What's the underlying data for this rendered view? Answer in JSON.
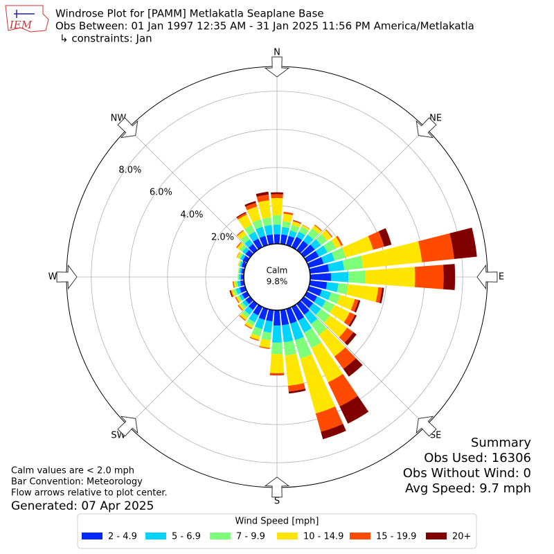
{
  "chart_data": {
    "type": "windrose",
    "logo_text": "IEM",
    "title": "Windrose Plot for [PAMM] Metlakatla Seaplane Base",
    "subtitle": "Obs Between: 01 Jan 1997 12:35 AM - 31 Jan 2025 11:56 PM America/Metlakatla",
    "constraints": "↳ constraints: Jan",
    "compass_labels": [
      "N",
      "NE",
      "E",
      "SE",
      "S",
      "SW",
      "W",
      "NW"
    ],
    "calm_label": "Calm",
    "calm_value": "9.8%",
    "rlim": [
      0,
      9.3
    ],
    "rticks": [
      {
        "value": 0,
        "label": "0.0%"
      },
      {
        "value": 2,
        "label": "2.0%"
      },
      {
        "value": 4,
        "label": "4.0%"
      },
      {
        "value": 6,
        "label": "6.0%"
      },
      {
        "value": 8,
        "label": "8.0%"
      }
    ],
    "grid": true,
    "legend_title": "Wind Speed [mph]",
    "series": [
      {
        "name": "2 - 4.9",
        "color": "#0028ff",
        "values": [
          0.5,
          0.5,
          0.5,
          0.6,
          0.6,
          0.7,
          0.7,
          0.8,
          1.0,
          1.1,
          0.9,
          0.7,
          0.6,
          0.6,
          0.7,
          0.8,
          0.8,
          0.8,
          0.8,
          0.6,
          0.6,
          0.5,
          0.4,
          0.3,
          0.3,
          0.3,
          0.2,
          0.15,
          0.15,
          0.2,
          0.25,
          0.3,
          0.4,
          0.5,
          0.5,
          0.5
        ]
      },
      {
        "name": "5 - 6.9",
        "color": "#00d4ff",
        "values": [
          0.5,
          0.4,
          0.3,
          0.3,
          0.4,
          0.4,
          0.5,
          0.6,
          0.8,
          0.9,
          0.6,
          0.5,
          0.5,
          0.5,
          0.6,
          0.7,
          0.9,
          0.9,
          0.9,
          0.6,
          0.5,
          0.4,
          0.3,
          0.2,
          0.15,
          0.2,
          0.15,
          0.1,
          0.1,
          0.1,
          0.15,
          0.2,
          0.3,
          0.4,
          0.5,
          0.5
        ]
      },
      {
        "name": "7 - 9.9",
        "color": "#7dff7a",
        "values": [
          0.5,
          0.3,
          0.3,
          0.3,
          0.4,
          0.4,
          0.5,
          0.6,
          1.0,
          0.9,
          0.5,
          0.5,
          0.5,
          0.6,
          0.7,
          0.9,
          1.0,
          0.7,
          0.6,
          0.4,
          0.4,
          0.2,
          0.2,
          0.15,
          0.1,
          0.15,
          0.1,
          0.05,
          0.05,
          0.05,
          0.1,
          0.2,
          0.3,
          0.4,
          0.4,
          0.4
        ]
      },
      {
        "name": "10 - 14.9",
        "color": "#ffe600",
        "values": [
          0.9,
          0.4,
          0.2,
          0.1,
          0.2,
          0.3,
          0.3,
          1.5,
          3.1,
          2.6,
          1.6,
          0.8,
          0.9,
          1.1,
          1.4,
          2.0,
          3.0,
          1.6,
          1.0,
          0.4,
          0.2,
          0.15,
          0.15,
          0.1,
          0.1,
          0.1,
          0.1,
          0.03,
          0.02,
          0.05,
          0.1,
          0.15,
          0.25,
          0.6,
          0.7,
          0.9
        ]
      },
      {
        "name": "15 - 19.9",
        "color": "#ff4a00",
        "values": [
          0.2,
          0.1,
          0.05,
          0.02,
          0.05,
          0.05,
          0.1,
          0.6,
          1.7,
          1.5,
          0.2,
          0.2,
          0.3,
          0.4,
          0.8,
          1.4,
          1.0,
          0.3,
          0.1,
          0.05,
          0.05,
          0.05,
          0.05,
          0.05,
          0.05,
          0.05,
          0.05,
          0,
          0,
          0,
          0.02,
          0.05,
          0.05,
          0.1,
          0.2,
          0.3
        ]
      },
      {
        "name": "20+",
        "color": "#800000",
        "values": [
          0.1,
          0,
          0.02,
          0,
          0,
          0,
          0,
          0.4,
          1.2,
          0.6,
          0.1,
          0.1,
          0.1,
          0.2,
          0.5,
          1.0,
          0.4,
          0.1,
          0.02,
          0,
          0,
          0,
          0,
          0,
          0,
          0.05,
          0,
          0,
          0,
          0,
          0,
          0,
          0,
          0.05,
          0.1,
          0.15
        ]
      }
    ],
    "summary": [
      "Summary",
      "Obs Used: 16306",
      "Obs Without Wind: 0",
      "Avg Speed: 9.7 mph"
    ],
    "notes": [
      "Calm values are < 2.0 mph",
      "Bar Convention: Meteorology",
      "Flow arrows relative to plot center."
    ],
    "generated": "Generated: 07 Apr 2025"
  }
}
